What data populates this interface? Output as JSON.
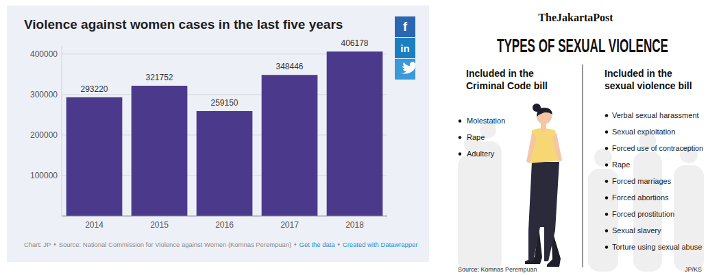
{
  "chart_data": {
    "type": "bar",
    "title": "Violence against women cases in the last five years",
    "categories": [
      "2014",
      "2015",
      "2016",
      "2017",
      "2018"
    ],
    "values": [
      293220,
      321752,
      259150,
      348446,
      406178
    ],
    "color": "#4b3a8c",
    "ylim": [
      0,
      420000
    ],
    "yticks": [
      100000,
      200000,
      300000,
      400000
    ],
    "grid": true,
    "data_labels": true,
    "credit": "Chart: JP",
    "source": "Source: National Commission for Violence against Women (Komnas Perempuan)",
    "annotations": [
      "Get the data",
      "Created with Datawrapper"
    ]
  },
  "share_buttons": [
    "f",
    "in"
  ],
  "infographic": {
    "publisher": "TheJakartaPost",
    "title": "TYPES OF SEXUAL VIOLENCE",
    "columns": [
      {
        "heading": "Included in the Criminal Code bill",
        "items": [
          "Molestation",
          "Rape",
          "Adultery"
        ]
      },
      {
        "heading": "Included in the sexual violence bill",
        "items": [
          "Verbal sexual harassment",
          "Sexual exploitation",
          "Forced use of contraception",
          "Rape",
          "Forced marriages",
          "Forced abortions",
          "Forced prostitution",
          "Sexual slavery",
          "Torture using sexual abuse"
        ]
      }
    ],
    "source": "Source: Komnas Perempuan",
    "credit": "JP/KS"
  }
}
